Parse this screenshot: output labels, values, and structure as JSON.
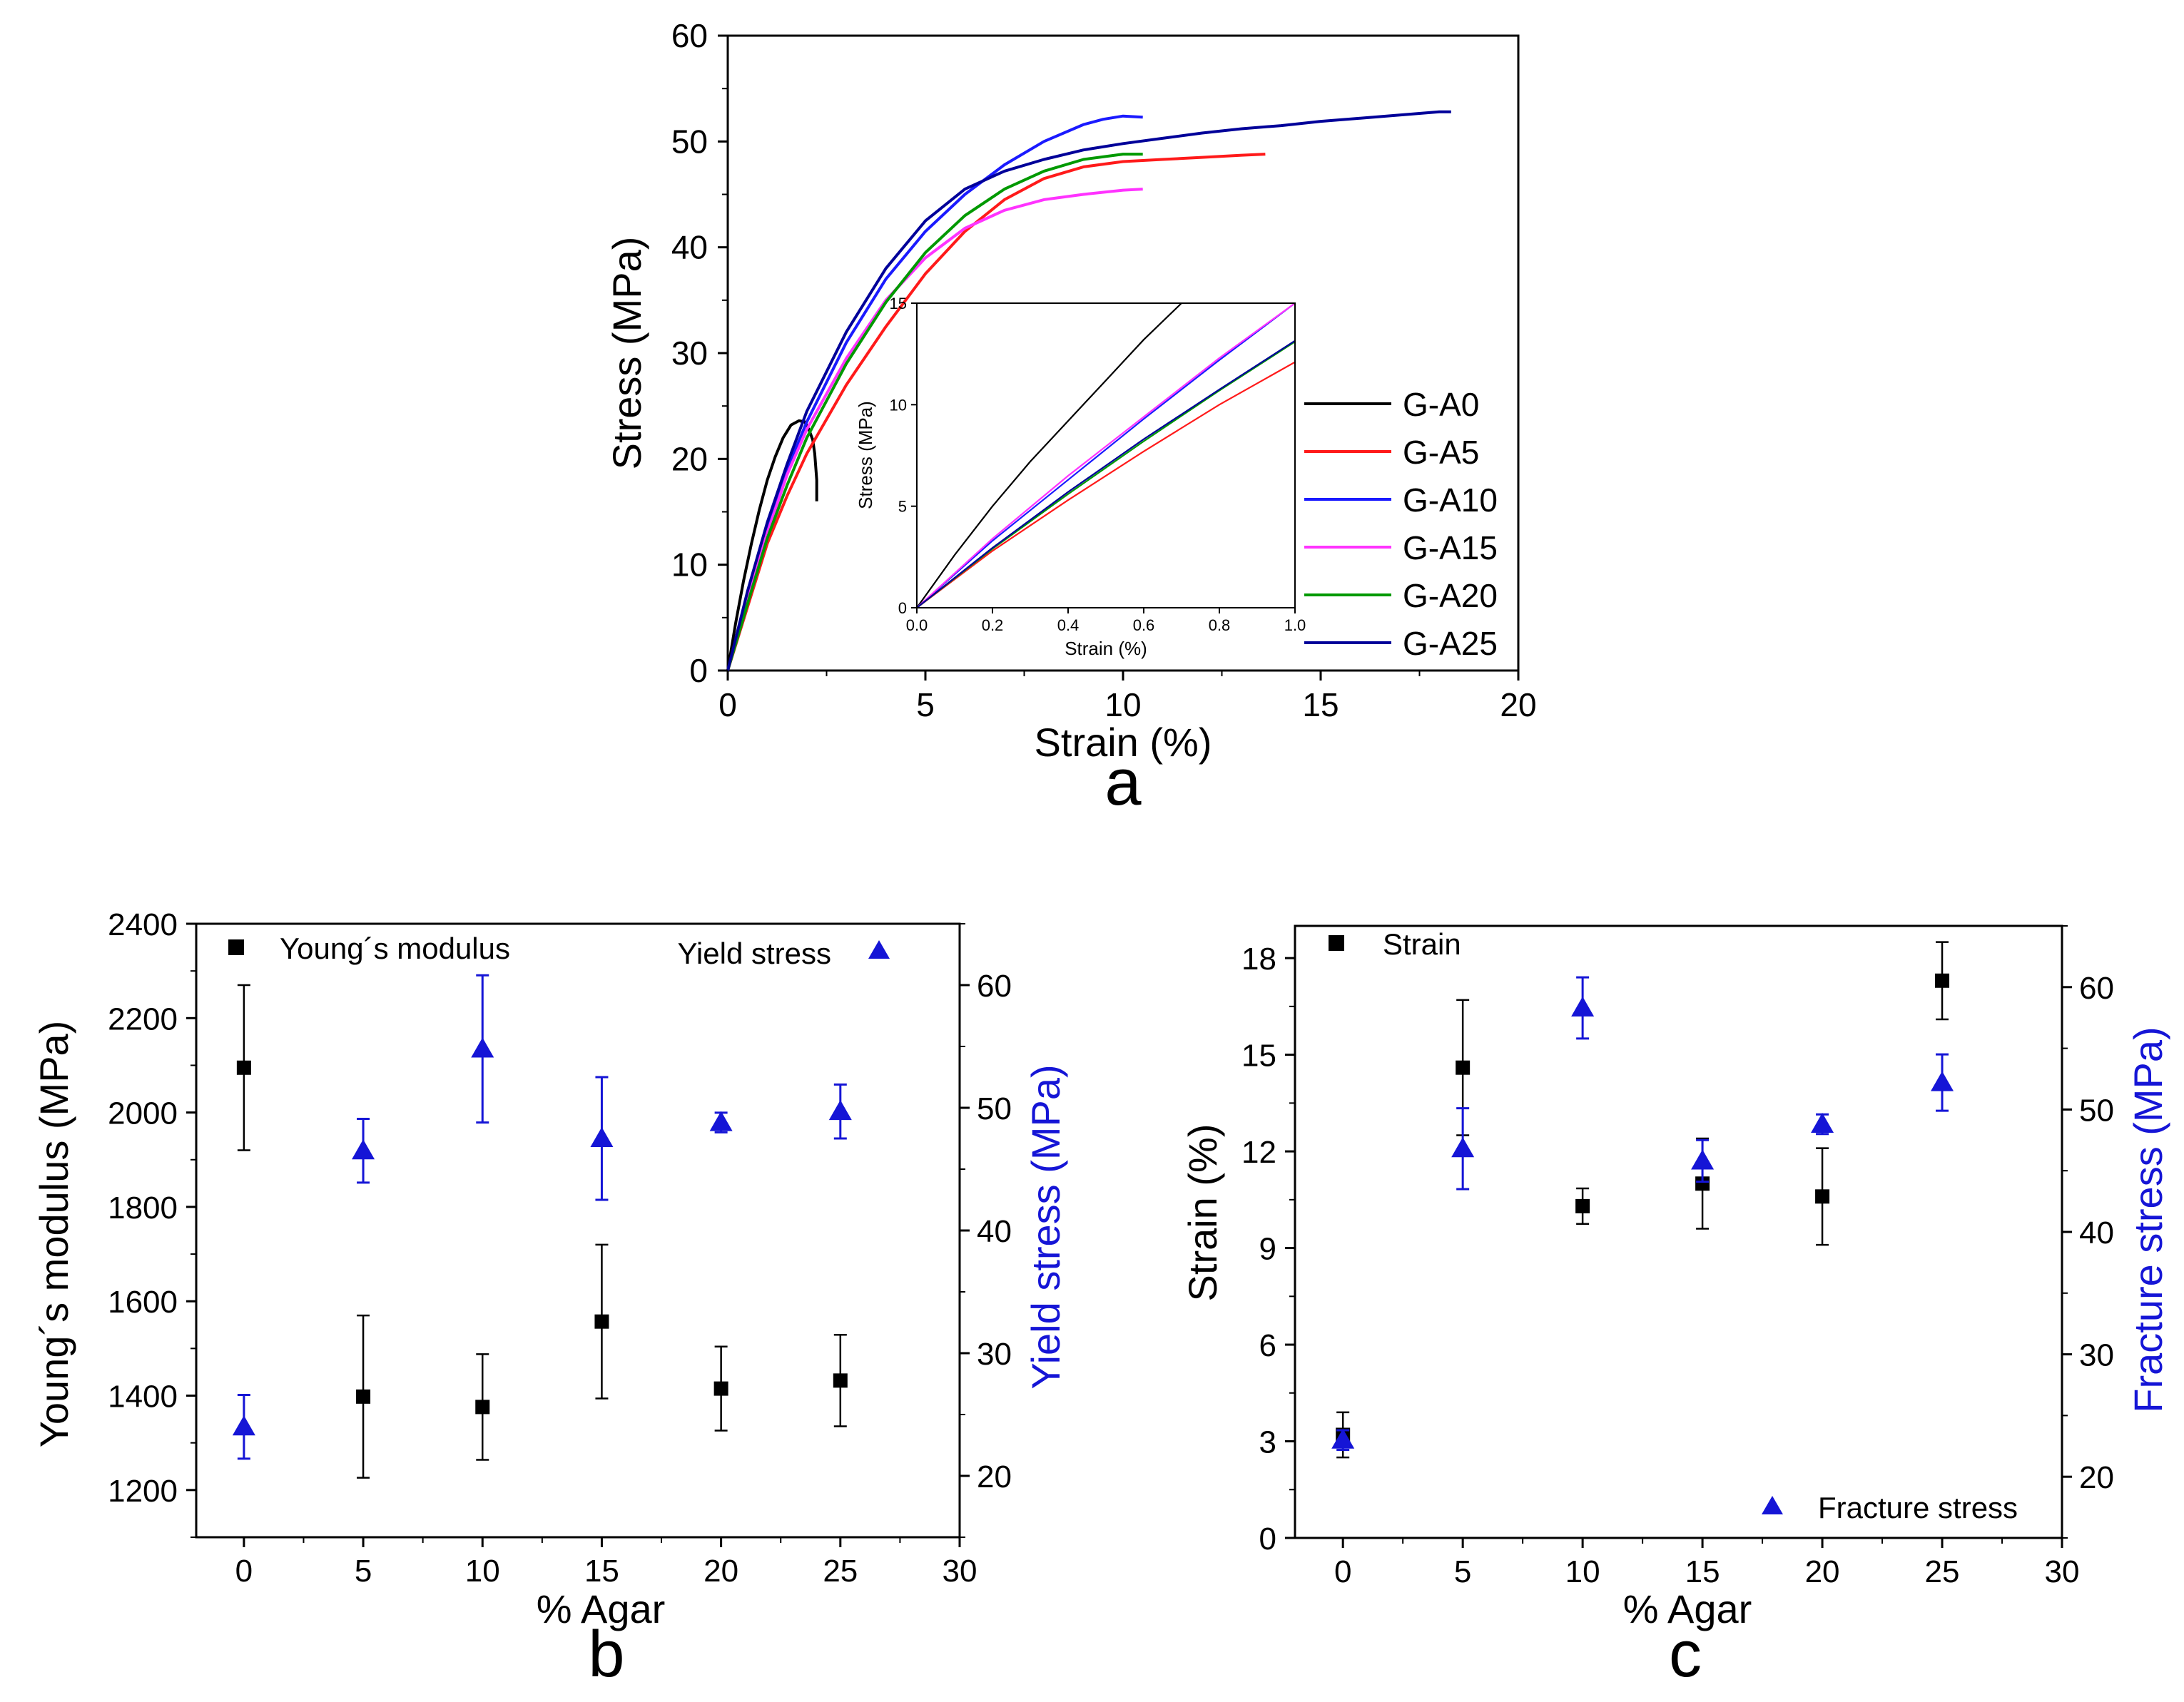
{
  "colors": {
    "axis": "#000000",
    "blue_axis": "#1515d6",
    "G-A0": "#000000",
    "G-A5": "#ff1a1a",
    "G-A10": "#1a1aff",
    "G-A15": "#ff33ff",
    "G-A20": "#009900",
    "G-A25": "#000099",
    "marker_black": "#000000",
    "marker_blue": "#1515d6"
  },
  "chart_data": [
    {
      "id": "a",
      "type": "line",
      "panel_label": "a",
      "xlabel": "Strain (%)",
      "ylabel": "Stress (MPa)",
      "xlim": [
        0,
        20
      ],
      "ylim": [
        0,
        60
      ],
      "xticks": [
        0,
        5,
        10,
        15,
        20
      ],
      "yticks": [
        0,
        10,
        20,
        30,
        40,
        50,
        60
      ],
      "xtick_labels": [
        "0",
        "5",
        "10",
        "15",
        "20"
      ],
      "ytick_labels": [
        "0",
        "10",
        "20",
        "30",
        "40",
        "50",
        "60"
      ],
      "legend": [
        "G-A0",
        "G-A5",
        "G-A10",
        "G-A15",
        "G-A20",
        "G-A25"
      ],
      "series": [
        {
          "name": "G-A0",
          "x": [
            0,
            0.2,
            0.4,
            0.6,
            0.8,
            1.0,
            1.2,
            1.4,
            1.6,
            1.8,
            1.95,
            2.05,
            2.15,
            2.2,
            2.25,
            2.25
          ],
          "y": [
            0,
            4.5,
            8.5,
            12.0,
            15.2,
            18.0,
            20.2,
            22.0,
            23.2,
            23.6,
            23.5,
            22.8,
            21.8,
            20.5,
            18.0,
            16.0
          ]
        },
        {
          "name": "G-A5",
          "x": [
            0,
            0.5,
            1,
            1.5,
            2,
            3,
            4,
            5,
            6,
            7,
            8,
            9,
            10,
            11,
            12,
            13,
            13.6
          ],
          "y": [
            0,
            6,
            12,
            16.5,
            20.5,
            27,
            32.5,
            37.5,
            41.5,
            44.5,
            46.5,
            47.6,
            48.1,
            48.3,
            48.5,
            48.7,
            48.8
          ]
        },
        {
          "name": "G-A10",
          "x": [
            0,
            0.5,
            1,
            1.5,
            2,
            3,
            4,
            5,
            6,
            7,
            8,
            9,
            9.5,
            10,
            10.5
          ],
          "y": [
            0,
            7,
            13.5,
            19,
            23.5,
            31,
            37,
            41.5,
            45,
            47.8,
            50,
            51.6,
            52.1,
            52.4,
            52.3
          ]
        },
        {
          "name": "G-A15",
          "x": [
            0,
            0.5,
            1,
            1.5,
            2,
            3,
            4,
            5,
            6,
            7,
            8,
            9,
            10,
            10.5
          ],
          "y": [
            0,
            7,
            13,
            18.5,
            22.8,
            29.5,
            35,
            39,
            41.8,
            43.5,
            44.5,
            45.0,
            45.4,
            45.5
          ]
        },
        {
          "name": "G-A20",
          "x": [
            0,
            0.5,
            1,
            1.5,
            2,
            3,
            4,
            5,
            6,
            7,
            8,
            9,
            10,
            10.5
          ],
          "y": [
            0,
            6.3,
            12.5,
            17.5,
            22,
            29,
            34.8,
            39.5,
            43,
            45.5,
            47.2,
            48.3,
            48.8,
            48.8
          ]
        },
        {
          "name": "G-A25",
          "x": [
            0,
            0.5,
            1,
            1.5,
            2,
            3,
            4,
            5,
            6,
            7,
            8,
            9,
            10,
            11,
            12,
            13,
            14,
            15,
            16,
            17,
            18,
            18.3
          ],
          "y": [
            0,
            7.5,
            14,
            19.5,
            24.5,
            32,
            38,
            42.5,
            45.5,
            47.2,
            48.3,
            49.2,
            49.8,
            50.3,
            50.8,
            51.2,
            51.5,
            51.9,
            52.2,
            52.5,
            52.8,
            52.8
          ]
        }
      ],
      "inset": {
        "xlabel": "Strain (%)",
        "ylabel": "Stress (MPa)",
        "xlim": [
          0,
          1.0
        ],
        "ylim": [
          0,
          15
        ],
        "xticks": [
          0,
          0.2,
          0.4,
          0.6,
          0.8,
          1.0
        ],
        "yticks": [
          0,
          5,
          10,
          15
        ],
        "xtick_labels": [
          "0.0",
          "0.2",
          "0.4",
          "0.6",
          "0.8",
          "1.0"
        ],
        "ytick_labels": [
          "0",
          "5",
          "10",
          "15"
        ],
        "series": [
          {
            "name": "G-A0",
            "x": [
              0,
              0.1,
              0.2,
              0.3,
              0.4,
              0.5,
              0.6,
              0.7
            ],
            "y": [
              0,
              2.6,
              5.0,
              7.2,
              9.2,
              11.2,
              13.2,
              15.0
            ]
          },
          {
            "name": "G-A5",
            "x": [
              0,
              0.2,
              0.4,
              0.6,
              0.8,
              1.0
            ],
            "y": [
              0,
              2.8,
              5.3,
              7.7,
              10.0,
              12.1
            ]
          },
          {
            "name": "G-A10",
            "x": [
              0,
              0.2,
              0.4,
              0.6,
              0.8,
              1.0
            ],
            "y": [
              0,
              3.3,
              6.3,
              9.3,
              12.2,
              15.0
            ]
          },
          {
            "name": "G-A15",
            "x": [
              0,
              0.2,
              0.4,
              0.6,
              0.8,
              1.0
            ],
            "y": [
              0,
              3.4,
              6.5,
              9.4,
              12.3,
              15.0
            ]
          },
          {
            "name": "G-A20",
            "x": [
              0,
              0.2,
              0.4,
              0.6,
              0.8,
              1.0
            ],
            "y": [
              0,
              2.9,
              5.6,
              8.2,
              10.7,
              13.1
            ]
          },
          {
            "name": "G-A25",
            "x": [
              0,
              0.2,
              0.4,
              0.6,
              0.8,
              1.0
            ],
            "y": [
              0,
              2.95,
              5.7,
              8.3,
              10.75,
              13.15
            ]
          }
        ]
      }
    },
    {
      "id": "b",
      "type": "scatter",
      "panel_label": "b",
      "xlabel": "% Agar",
      "ylabel": "Young´s modulus (MPa)",
      "y2label": "Yield stress (MPa)",
      "xlim": [
        -2,
        30
      ],
      "ylim": [
        1100,
        2400
      ],
      "y2lim": [
        15,
        65
      ],
      "xticks": [
        0,
        5,
        10,
        15,
        20,
        25,
        30
      ],
      "yticks": [
        1200,
        1400,
        1600,
        1800,
        2000,
        2200,
        2400
      ],
      "y2ticks": [
        20,
        30,
        40,
        50,
        60
      ],
      "xtick_labels": [
        "0",
        "5",
        "10",
        "15",
        "20",
        "25",
        "30"
      ],
      "ytick_labels": [
        "1200",
        "1400",
        "1600",
        "1800",
        "2000",
        "2200",
        "2400"
      ],
      "y2tick_labels": [
        "20",
        "30",
        "40",
        "50",
        "60"
      ],
      "legend": [
        "Young´s modulus",
        "Yield stress"
      ],
      "series": [
        {
          "name": "Young´s modulus",
          "axis": "left",
          "marker": "square",
          "x": [
            0,
            5,
            10,
            15,
            20,
            25
          ],
          "y": [
            2095,
            1398,
            1376,
            1557,
            1415,
            1432
          ],
          "err": [
            175,
            172,
            112,
            163,
            89,
            97
          ]
        },
        {
          "name": "Yield stress",
          "axis": "right",
          "marker": "triangle",
          "x": [
            0,
            5,
            10,
            15,
            20,
            25
          ],
          "y": [
            24.0,
            46.5,
            54.8,
            47.5,
            48.8,
            49.7
          ],
          "err": [
            2.6,
            2.6,
            6.0,
            5.0,
            0.8,
            2.2
          ]
        }
      ]
    },
    {
      "id": "c",
      "type": "scatter",
      "panel_label": "c",
      "xlabel": "% Agar",
      "ylabel": "Strain (%)",
      "y2label": "Fracture stress (MPa)",
      "xlim": [
        -2,
        30
      ],
      "ylim": [
        0,
        19
      ],
      "y2lim": [
        15,
        65
      ],
      "xticks": [
        0,
        5,
        10,
        15,
        20,
        25,
        30
      ],
      "yticks": [
        0,
        3,
        6,
        9,
        12,
        15,
        18
      ],
      "y2ticks": [
        20,
        30,
        40,
        50,
        60
      ],
      "xtick_labels": [
        "0",
        "5",
        "10",
        "15",
        "20",
        "25",
        "30"
      ],
      "ytick_labels": [
        "0",
        "3",
        "6",
        "9",
        "12",
        "15",
        "18"
      ],
      "y2tick_labels": [
        "20",
        "30",
        "40",
        "50",
        "60"
      ],
      "legend": [
        "Strain",
        "Fracture stress"
      ],
      "series": [
        {
          "name": "Strain",
          "axis": "left",
          "marker": "square",
          "x": [
            0,
            5,
            10,
            15,
            20,
            25
          ],
          "y": [
            3.2,
            14.6,
            10.3,
            11.0,
            10.6,
            17.3
          ],
          "err": [
            0.7,
            2.1,
            0.55,
            1.4,
            1.5,
            1.2
          ]
        },
        {
          "name": "Fracture stress",
          "axis": "right",
          "marker": "triangle",
          "x": [
            0,
            5,
            10,
            15,
            20,
            25
          ],
          "y": [
            23.0,
            46.8,
            58.3,
            45.8,
            48.8,
            52.2
          ],
          "err": [
            0.8,
            3.3,
            2.5,
            1.7,
            0.8,
            2.3
          ]
        }
      ]
    }
  ]
}
